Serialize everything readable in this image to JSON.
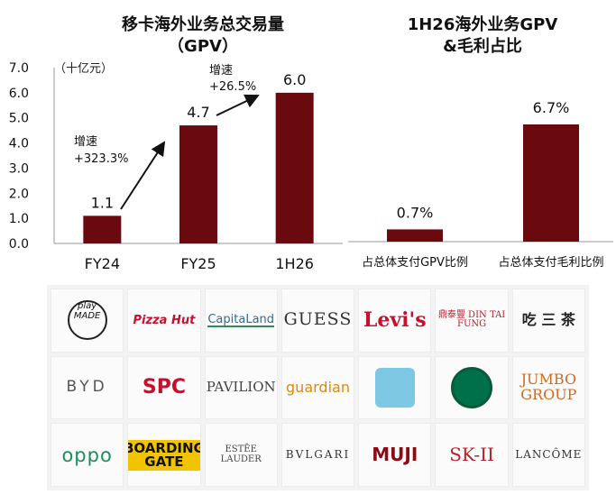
{
  "left_chart": {
    "title_line1": "移卡海外业务总交易量",
    "title_line2": "（GPV）",
    "unit_label": "（十亿元）",
    "growth_1": {
      "label": "增速",
      "value": "+323.3%"
    },
    "growth_2": {
      "label": "增速",
      "value": "+26.5%"
    }
  },
  "right_chart": {
    "title_line1": "1H26海外业务GPV",
    "title_line2": "&毛利占比"
  },
  "colors": {
    "bar": "#6b0a0e",
    "axis": "#999999",
    "arrow": "#111111"
  },
  "chart_data": [
    {
      "type": "bar",
      "title": "移卡海外业务总交易量（GPV）",
      "ylabel": "（十亿元）",
      "categories": [
        "FY24",
        "FY25",
        "1H26"
      ],
      "values": [
        1.1,
        4.7,
        6.0
      ],
      "value_labels": [
        "1.1",
        "4.7",
        "6.0"
      ],
      "ylim": [
        0,
        7.0
      ],
      "yticks": [
        "0.0",
        "1.0",
        "2.0",
        "3.0",
        "4.0",
        "5.0",
        "6.0",
        "7.0"
      ],
      "annotations": [
        "增速 +323.3%",
        "增速 +26.5%"
      ],
      "grid": false
    },
    {
      "type": "bar",
      "title": "1H26海外业务GPV &毛利占比",
      "categories": [
        "占总体支付GPV比例",
        "占总体支付毛利比例"
      ],
      "values": [
        0.7,
        6.7
      ],
      "value_labels": [
        "0.7%",
        "6.7%"
      ],
      "grid": false
    }
  ],
  "logos": [
    {
      "name": "playmade-logo",
      "text": "play MADE",
      "cls": "l-playmade"
    },
    {
      "name": "pizza-hut-logo",
      "text": "Pizza Hut",
      "cls": "l-pizza"
    },
    {
      "name": "capitaland-logo",
      "text": "CapitaLand",
      "cls": "l-capita"
    },
    {
      "name": "guess-logo",
      "text": "GUESS",
      "cls": "l-guess"
    },
    {
      "name": "levis-logo",
      "text": "Levi's",
      "cls": "l-levis"
    },
    {
      "name": "din-tai-fung-logo",
      "text": "鼎泰豐 DIN TAI FUNG",
      "cls": "l-dtf"
    },
    {
      "name": "chi-logo",
      "text": "吃 三 茶",
      "cls": "l-chi"
    },
    {
      "name": "byd-logo",
      "text": "BYD",
      "cls": "l-byd"
    },
    {
      "name": "spc-logo",
      "text": "SPC",
      "cls": "l-spc"
    },
    {
      "name": "pavilion-logo",
      "text": "PAVILION",
      "cls": "l-pavilion"
    },
    {
      "name": "guardian-logo",
      "text": "guardian",
      "cls": "l-guardian"
    },
    {
      "name": "kids-logo",
      "text": "",
      "cls": "l-kids"
    },
    {
      "name": "starbucks-logo",
      "text": "",
      "cls": "l-starbucks"
    },
    {
      "name": "jumbo-logo",
      "text": "JUMBO GROUP",
      "cls": "l-jumbo"
    },
    {
      "name": "oppo-logo",
      "text": "oppo",
      "cls": "l-oppo"
    },
    {
      "name": "boarding-gate-logo",
      "text": "BOARDING GATE",
      "cls": "l-boarding"
    },
    {
      "name": "estee-lauder-logo",
      "text": "ESTĒE LAUDER",
      "cls": "l-estee"
    },
    {
      "name": "bvlgari-logo",
      "text": "BVLGARI",
      "cls": "l-bvlgari"
    },
    {
      "name": "muji-logo",
      "text": "MUJI",
      "cls": "l-muji"
    },
    {
      "name": "sk-ii-logo",
      "text": "SK-II",
      "cls": "l-skii"
    },
    {
      "name": "lancome-logo",
      "text": "LANCÔME",
      "cls": "l-lancome"
    }
  ]
}
